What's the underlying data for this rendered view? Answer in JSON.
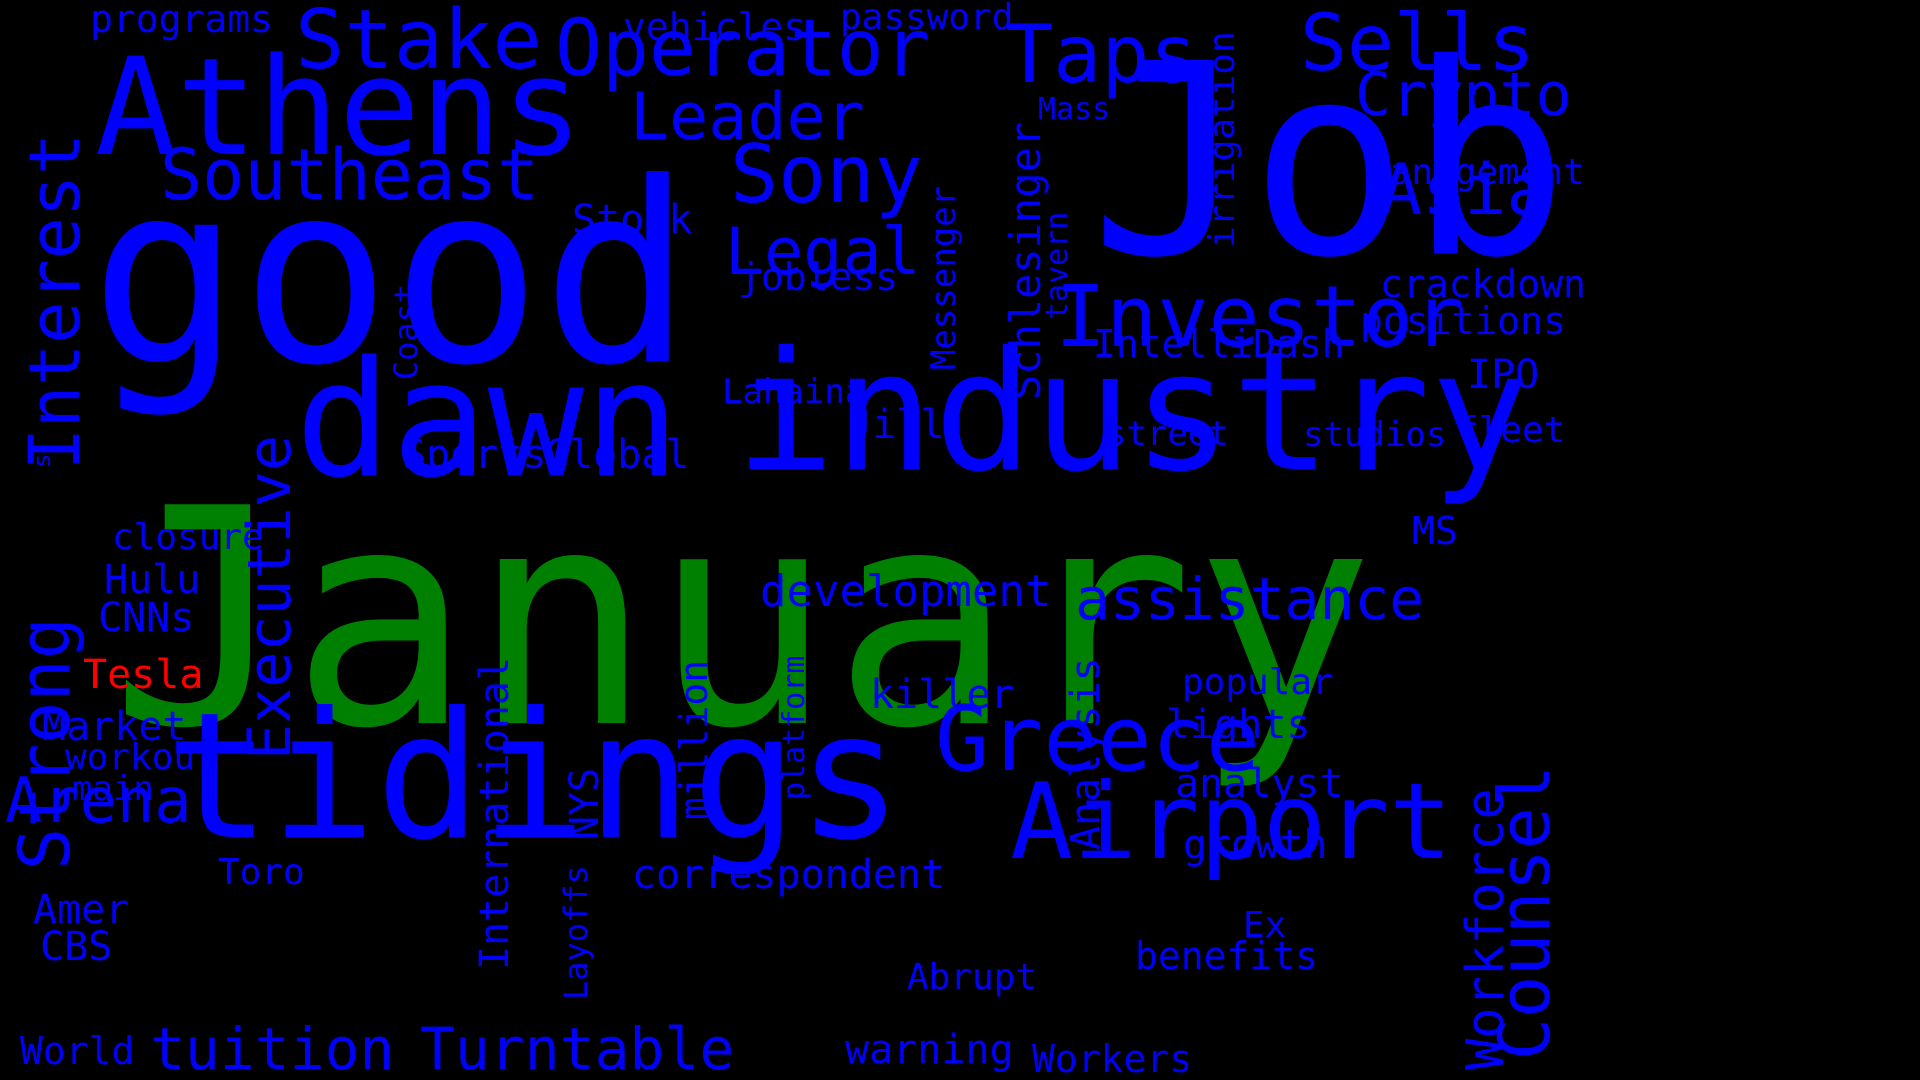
{
  "colors": {
    "background": "#000000",
    "default": "#0000FF",
    "highlight_green": "#008000",
    "highlight_red": "#FF0000"
  },
  "words": [
    {
      "text": "January",
      "color": "#008000"
    },
    {
      "text": "good",
      "color": "#0000FF"
    },
    {
      "text": "Job",
      "color": "#0000FF"
    },
    {
      "text": "industry",
      "color": "#0000FF"
    },
    {
      "text": "tidings",
      "color": "#0000FF"
    },
    {
      "text": "dawn",
      "color": "#0000FF"
    },
    {
      "text": "Athens",
      "color": "#0000FF"
    },
    {
      "text": "Airport",
      "color": "#0000FF"
    },
    {
      "text": "Investor",
      "color": "#0000FF"
    },
    {
      "text": "Greece",
      "color": "#0000FF"
    },
    {
      "text": "Operator",
      "color": "#0000FF"
    },
    {
      "text": "Taps",
      "color": "#0000FF"
    },
    {
      "text": "Sells",
      "color": "#0000FF"
    },
    {
      "text": "Stake",
      "color": "#0000FF"
    },
    {
      "text": "Sony",
      "color": "#0000FF"
    },
    {
      "text": "Southeast",
      "color": "#0000FF"
    },
    {
      "text": "Leader",
      "color": "#0000FF"
    },
    {
      "text": "Legal",
      "color": "#0000FF"
    },
    {
      "text": "Asia",
      "color": "#0000FF"
    },
    {
      "text": "Crypto",
      "color": "#0000FF"
    },
    {
      "text": "Strong",
      "color": "#0000FF"
    },
    {
      "text": "Interest",
      "color": "#0000FF"
    },
    {
      "text": "Executive",
      "color": "#0000FF"
    },
    {
      "text": "Counsel",
      "color": "#0000FF"
    },
    {
      "text": "Workforce",
      "color": "#0000FF"
    },
    {
      "text": "assistance",
      "color": "#0000FF"
    },
    {
      "text": "Arena",
      "color": "#0000FF"
    },
    {
      "text": "tuition",
      "color": "#0000FF"
    },
    {
      "text": "Turntable",
      "color": "#0000FF"
    },
    {
      "text": "development",
      "color": "#0000FF"
    },
    {
      "text": "correspondent",
      "color": "#0000FF"
    },
    {
      "text": "Stock",
      "color": "#0000FF"
    },
    {
      "text": "Sports",
      "color": "#0000FF"
    },
    {
      "text": "Global",
      "color": "#0000FF"
    },
    {
      "text": "jobless",
      "color": "#0000FF"
    },
    {
      "text": "Lahaina",
      "color": "#0000FF"
    },
    {
      "text": "Jill",
      "color": "#0000FF"
    },
    {
      "text": "killer",
      "color": "#0000FF"
    },
    {
      "text": "IntelliDash",
      "color": "#0000FF"
    },
    {
      "text": "street",
      "color": "#0000FF"
    },
    {
      "text": "studios",
      "color": "#0000FF"
    },
    {
      "text": "fleet",
      "color": "#0000FF"
    },
    {
      "text": "IPO",
      "color": "#0000FF"
    },
    {
      "text": "positions",
      "color": "#0000FF"
    },
    {
      "text": "crackdown",
      "color": "#0000FF"
    },
    {
      "text": "management",
      "color": "#0000FF"
    },
    {
      "text": "Mass",
      "color": "#0000FF"
    },
    {
      "text": "password",
      "color": "#0000FF"
    },
    {
      "text": "vehicles",
      "color": "#0000FF"
    },
    {
      "text": "programs",
      "color": "#0000FF"
    },
    {
      "text": "MS",
      "color": "#0000FF"
    },
    {
      "text": "popular",
      "color": "#0000FF"
    },
    {
      "text": "lights",
      "color": "#0000FF"
    },
    {
      "text": "analyst",
      "color": "#0000FF"
    },
    {
      "text": "growth",
      "color": "#0000FF"
    },
    {
      "text": "Ex",
      "color": "#0000FF"
    },
    {
      "text": "benefits",
      "color": "#0000FF"
    },
    {
      "text": "Workers",
      "color": "#0000FF"
    },
    {
      "text": "warning",
      "color": "#0000FF"
    },
    {
      "text": "Abrupt",
      "color": "#0000FF"
    },
    {
      "text": "Toro",
      "color": "#0000FF"
    },
    {
      "text": "Amer",
      "color": "#0000FF"
    },
    {
      "text": "CBS",
      "color": "#0000FF"
    },
    {
      "text": "World",
      "color": "#0000FF"
    },
    {
      "text": "closure",
      "color": "#0000FF"
    },
    {
      "text": "Hulu",
      "color": "#0000FF"
    },
    {
      "text": "CNNs",
      "color": "#0000FF"
    },
    {
      "text": "Tesla",
      "color": "#FF0000"
    },
    {
      "text": "Market",
      "color": "#0000FF"
    },
    {
      "text": "workout",
      "color": "#0000FF"
    },
    {
      "text": "main",
      "color": "#0000FF"
    },
    {
      "text": "s",
      "color": "#0000FF"
    },
    {
      "text": "Coast",
      "color": "#0000FF"
    },
    {
      "text": "Messenger",
      "color": "#0000FF"
    },
    {
      "text": "Schlesinger",
      "color": "#0000FF"
    },
    {
      "text": "tavern",
      "color": "#0000FF"
    },
    {
      "text": "irrigation",
      "color": "#0000FF"
    },
    {
      "text": "Analysis",
      "color": "#0000FF"
    },
    {
      "text": "platform",
      "color": "#0000FF"
    },
    {
      "text": "million",
      "color": "#0000FF"
    },
    {
      "text": "International",
      "color": "#0000FF"
    },
    {
      "text": "Layoffs",
      "color": "#0000FF"
    },
    {
      "text": "NYS",
      "color": "#0000FF"
    }
  ]
}
